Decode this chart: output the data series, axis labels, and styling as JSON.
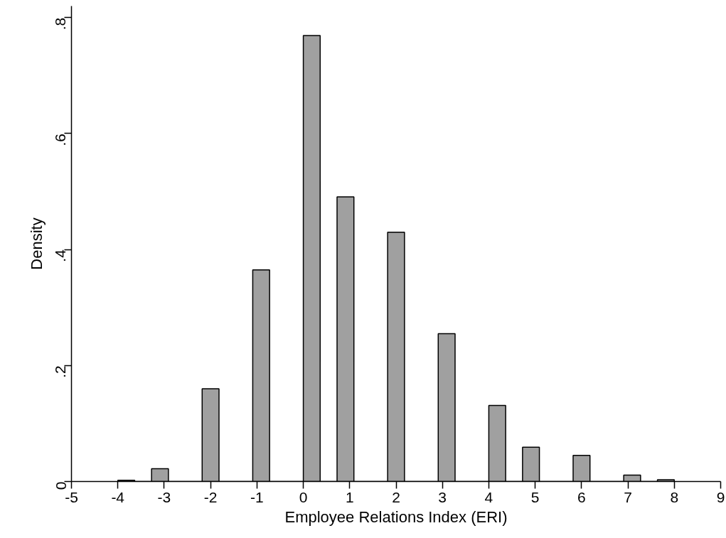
{
  "chart_data": {
    "type": "histogram",
    "xlabel": "Employee Relations Index (ERI)",
    "ylabel": "Density",
    "bins": [
      -4,
      -3.6364,
      -3.2727,
      -2.9091,
      -2.5455,
      -2.1818,
      -1.8182,
      -1.4545,
      -1.0909,
      -0.7273,
      -0.3636,
      0,
      0.3636,
      0.7273,
      1.0909,
      1.4545,
      1.8182,
      2.1818,
      2.5455,
      2.9091,
      3.2727,
      3.6364,
      4,
      4.3636,
      4.7273,
      5.0909,
      5.4545,
      5.8182,
      6.1818,
      6.5455,
      6.9091,
      7.2727,
      7.6364,
      8
    ],
    "values": [
      0.002,
      0,
      0.022,
      0,
      0,
      0.16,
      0,
      0,
      0.365,
      0,
      0,
      0.769,
      0,
      0.491,
      0,
      0,
      0.43,
      0,
      0,
      0.255,
      0,
      0,
      0.131,
      0,
      0.059,
      0,
      0,
      0.045,
      0,
      0,
      0.011,
      0,
      0.003
    ],
    "color": "#a0a0a0",
    "xlim": [
      -5,
      9
    ],
    "ylim": [
      0,
      0.82
    ],
    "xticks": [
      -5,
      -4,
      -3,
      -2,
      -1,
      0,
      1,
      2,
      3,
      4,
      5,
      6,
      7,
      8,
      9
    ],
    "yticks": [
      0,
      {
        "value": 0.2,
        "label": ".2"
      },
      {
        "value": 0.4,
        "label": ".4"
      },
      {
        "value": 0.6,
        "label": ".6"
      },
      {
        "value": 0.8,
        "label": ".8"
      }
    ],
    "grid": false
  }
}
